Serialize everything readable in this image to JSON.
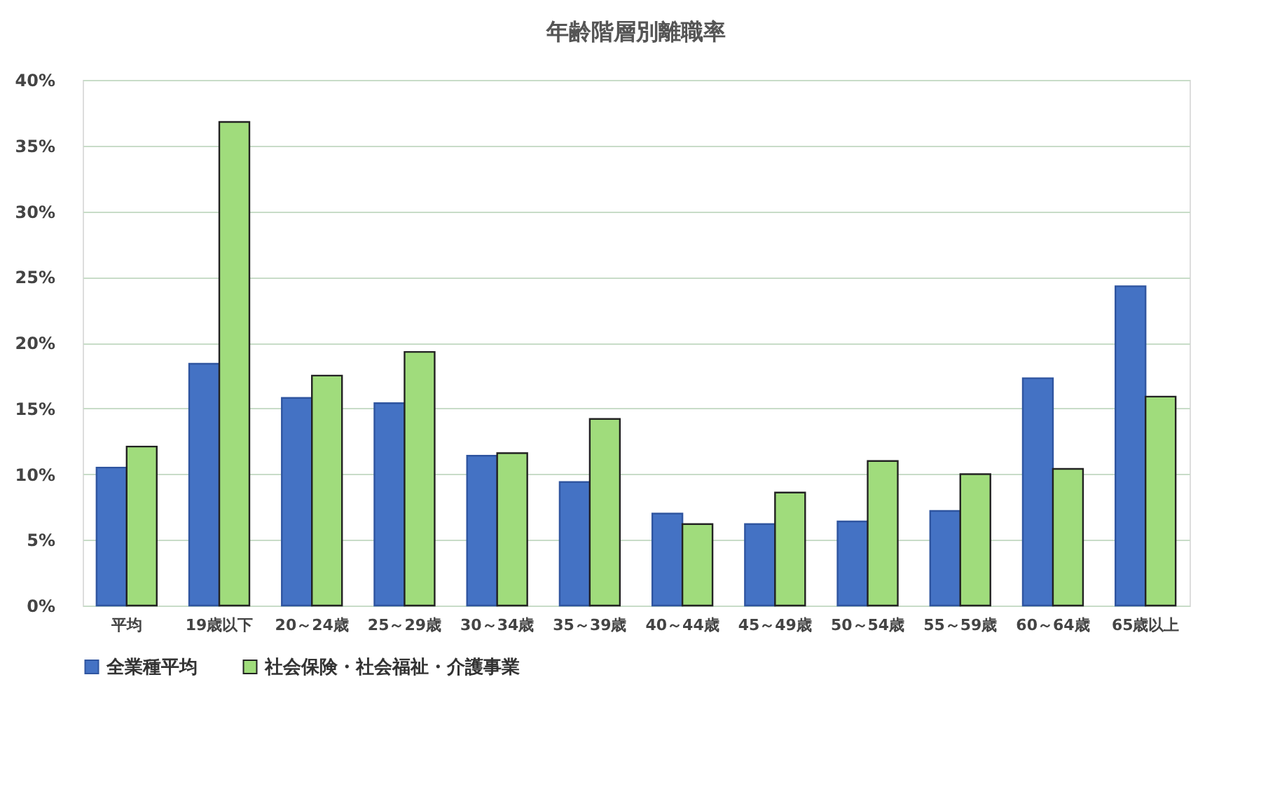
{
  "chart_data": {
    "type": "bar",
    "title": "年齢階層別離職率",
    "categories": [
      "平均",
      "19歳以下",
      "20～24歳",
      "25～29歳",
      "30～34歳",
      "35～39歳",
      "40～44歳",
      "45～49歳",
      "50～54歳",
      "55～59歳",
      "60～64歳",
      "65歳以上"
    ],
    "series": [
      {
        "name": "全業種平均",
        "color": "#4472c4",
        "values": [
          10.5,
          18.4,
          15.8,
          15.4,
          11.4,
          9.4,
          7.0,
          6.2,
          6.4,
          7.2,
          17.3,
          24.3
        ]
      },
      {
        "name": "社会保険・社会福祉・介護事業",
        "color": "#a0dc7c",
        "values": [
          12.1,
          36.8,
          17.5,
          19.3,
          11.6,
          14.2,
          6.2,
          8.6,
          11.0,
          10.0,
          10.4,
          15.9
        ]
      }
    ],
    "ylim": [
      0,
      40
    ],
    "yticks": [
      {
        "value": 0,
        "label": "0%"
      },
      {
        "value": 5,
        "label": "5%"
      },
      {
        "value": 10,
        "label": "10%"
      },
      {
        "value": 15,
        "label": "15%"
      },
      {
        "value": 20,
        "label": "20%"
      },
      {
        "value": 25,
        "label": "25%"
      },
      {
        "value": 30,
        "label": "30%"
      },
      {
        "value": 35,
        "label": "35%"
      },
      {
        "value": 40,
        "label": "40%"
      }
    ],
    "grid": "y",
    "legend": "bottom"
  }
}
